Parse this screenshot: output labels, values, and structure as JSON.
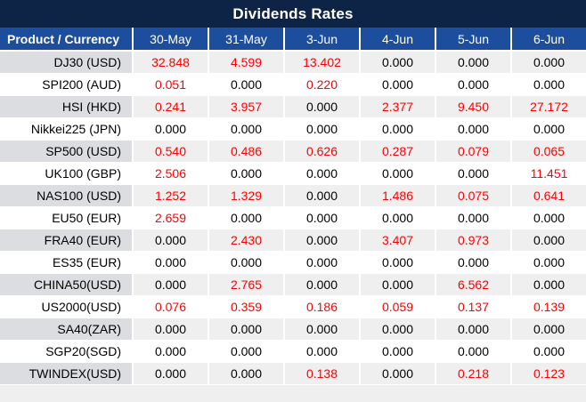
{
  "title": "Dividends Rates",
  "colors": {
    "title_bg": "#0E2446",
    "header_bg": "#1D4E9E",
    "row_alt_bg": "#EFEFEF",
    "label_alt_bg": "#DBDDE0",
    "value_red": "#FF0000"
  },
  "table": {
    "product_header": "Product / Currency",
    "date_headers": [
      "30-May",
      "31-May",
      "3-Jun",
      "4-Jun",
      "5-Jun",
      "6-Jun"
    ],
    "rows": [
      {
        "product": "DJ30 (USD)",
        "values": [
          "32.848",
          "4.599",
          "13.402",
          "0.000",
          "0.000",
          "0.000"
        ]
      },
      {
        "product": "SPI200 (AUD)",
        "values": [
          "0.051",
          "0.000",
          "0.220",
          "0.000",
          "0.000",
          "0.000"
        ]
      },
      {
        "product": "HSI (HKD)",
        "values": [
          "0.241",
          "3.957",
          "0.000",
          "2.377",
          "9.450",
          "27.172"
        ]
      },
      {
        "product": "Nikkei225 (JPN)",
        "values": [
          "0.000",
          "0.000",
          "0.000",
          "0.000",
          "0.000",
          "0.000"
        ]
      },
      {
        "product": "SP500 (USD)",
        "values": [
          "0.540",
          "0.486",
          "0.626",
          "0.287",
          "0.079",
          "0.065"
        ]
      },
      {
        "product": "UK100 (GBP)",
        "values": [
          "2.506",
          "0.000",
          "0.000",
          "0.000",
          "0.000",
          "11.451"
        ]
      },
      {
        "product": "NAS100 (USD)",
        "values": [
          "1.252",
          "1.329",
          "0.000",
          "1.486",
          "0.075",
          "0.641"
        ]
      },
      {
        "product": "EU50 (EUR)",
        "values": [
          "2.659",
          "0.000",
          "0.000",
          "0.000",
          "0.000",
          "0.000"
        ]
      },
      {
        "product": "FRA40 (EUR)",
        "values": [
          "0.000",
          "2.430",
          "0.000",
          "3.407",
          "0.973",
          "0.000"
        ]
      },
      {
        "product": "ES35 (EUR)",
        "values": [
          "0.000",
          "0.000",
          "0.000",
          "0.000",
          "0.000",
          "0.000"
        ]
      },
      {
        "product": "CHINA50(USD)",
        "values": [
          "0.000",
          "2.765",
          "0.000",
          "0.000",
          "6.562",
          "0.000"
        ]
      },
      {
        "product": "US2000(USD)",
        "values": [
          "0.076",
          "0.359",
          "0.186",
          "0.059",
          "0.137",
          "0.139"
        ]
      },
      {
        "product": "SA40(ZAR)",
        "values": [
          "0.000",
          "0.000",
          "0.000",
          "0.000",
          "0.000",
          "0.000"
        ]
      },
      {
        "product": "SGP20(SGD)",
        "values": [
          "0.000",
          "0.000",
          "0.000",
          "0.000",
          "0.000",
          "0.000"
        ]
      },
      {
        "product": "TWINDEX(USD)",
        "values": [
          "0.000",
          "0.000",
          "0.138",
          "0.000",
          "0.218",
          "0.123"
        ]
      }
    ]
  },
  "chart_data": {
    "type": "table",
    "title": "Dividends Rates",
    "columns": [
      "Product / Currency",
      "30-May",
      "31-May",
      "3-Jun",
      "4-Jun",
      "5-Jun",
      "6-Jun"
    ],
    "rows": [
      [
        "DJ30 (USD)",
        32.848,
        4.599,
        13.402,
        0.0,
        0.0,
        0.0
      ],
      [
        "SPI200 (AUD)",
        0.051,
        0.0,
        0.22,
        0.0,
        0.0,
        0.0
      ],
      [
        "HSI (HKD)",
        0.241,
        3.957,
        0.0,
        2.377,
        9.45,
        27.172
      ],
      [
        "Nikkei225 (JPN)",
        0.0,
        0.0,
        0.0,
        0.0,
        0.0,
        0.0
      ],
      [
        "SP500 (USD)",
        0.54,
        0.486,
        0.626,
        0.287,
        0.079,
        0.065
      ],
      [
        "UK100 (GBP)",
        2.506,
        0.0,
        0.0,
        0.0,
        0.0,
        11.451
      ],
      [
        "NAS100 (USD)",
        1.252,
        1.329,
        0.0,
        1.486,
        0.075,
        0.641
      ],
      [
        "EU50 (EUR)",
        2.659,
        0.0,
        0.0,
        0.0,
        0.0,
        0.0
      ],
      [
        "FRA40 (EUR)",
        0.0,
        2.43,
        0.0,
        3.407,
        0.973,
        0.0
      ],
      [
        "ES35 (EUR)",
        0.0,
        0.0,
        0.0,
        0.0,
        0.0,
        0.0
      ],
      [
        "CHINA50(USD)",
        0.0,
        2.765,
        0.0,
        0.0,
        6.562,
        0.0
      ],
      [
        "US2000(USD)",
        0.076,
        0.359,
        0.186,
        0.059,
        0.137,
        0.139
      ],
      [
        "SA40(ZAR)",
        0.0,
        0.0,
        0.0,
        0.0,
        0.0,
        0.0
      ],
      [
        "SGP20(SGD)",
        0.0,
        0.0,
        0.0,
        0.0,
        0.0,
        0.0
      ],
      [
        "TWINDEX(USD)",
        0.0,
        0.0,
        0.138,
        0.0,
        0.218,
        0.123
      ]
    ],
    "notes": "Non-zero values rendered in red; zero values in black. Rows alternate gray/white starting gray."
  }
}
